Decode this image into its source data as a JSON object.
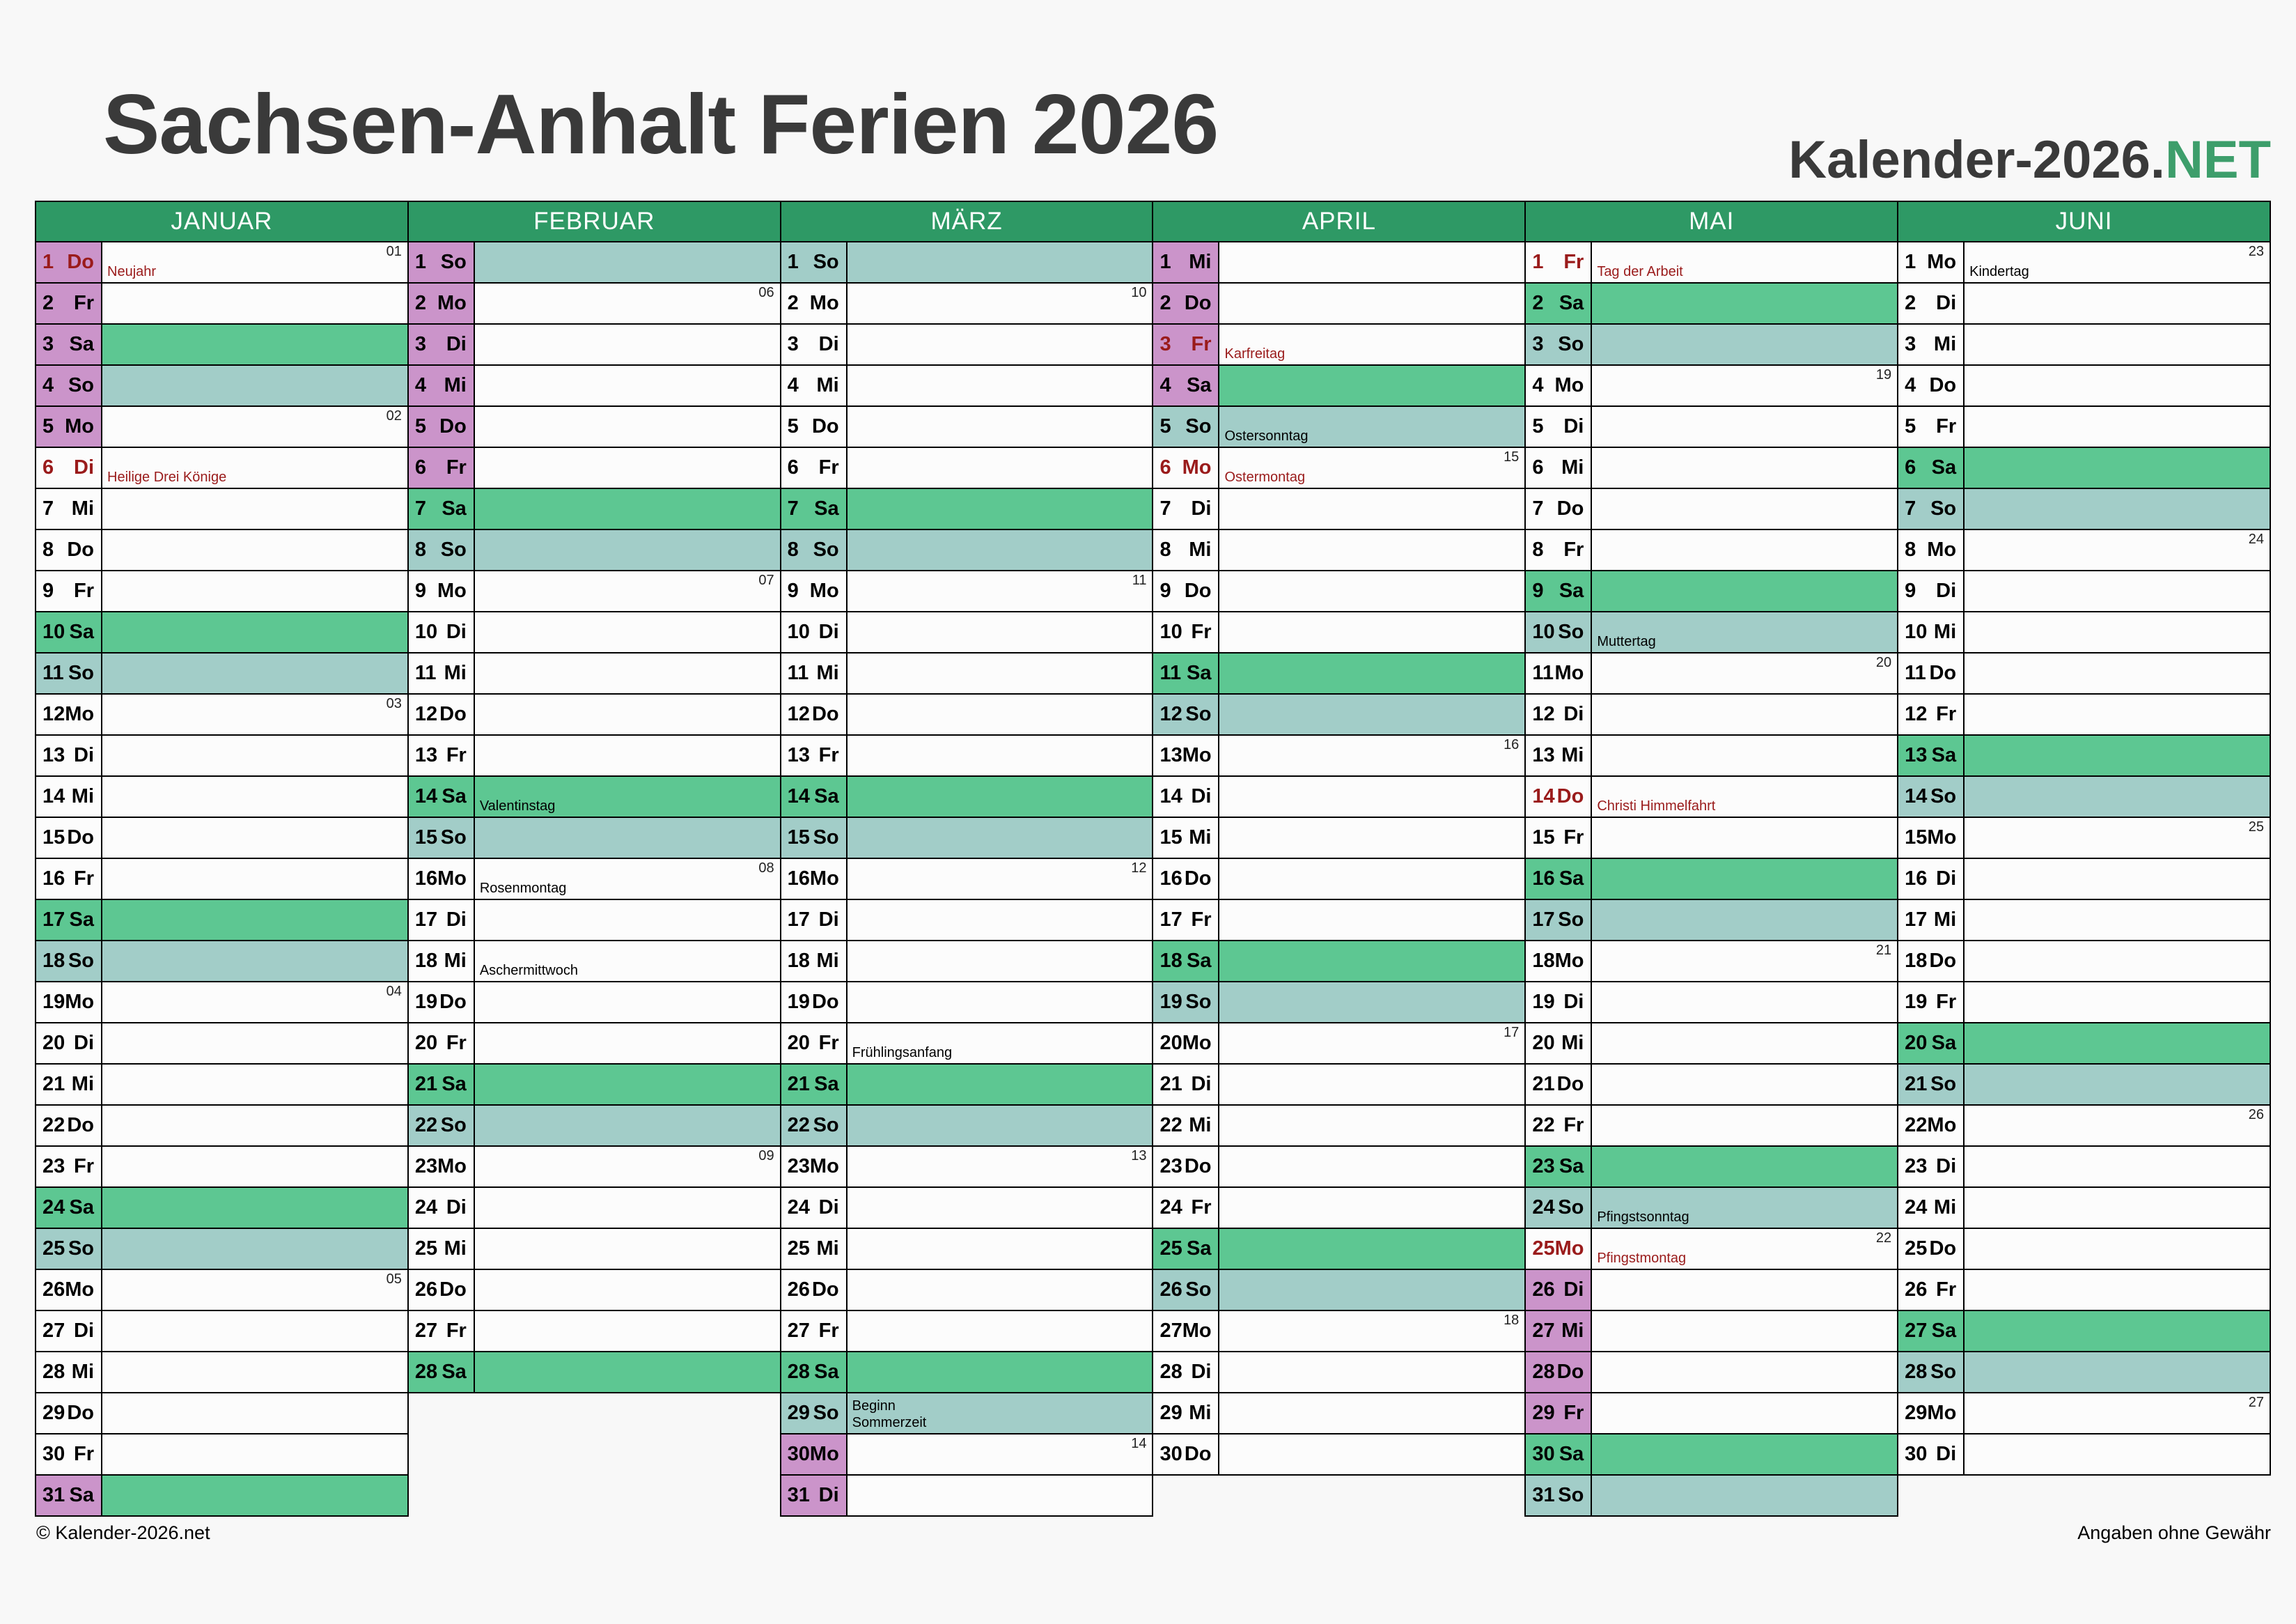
{
  "header": {
    "title": "Sachsen-Anhalt Ferien 2026",
    "logo_prefix": "Kalender-2026.",
    "logo_suffix": "NET"
  },
  "footer": {
    "left": "© Kalender-2026.net",
    "right": "Angaben ohne Gewähr"
  },
  "colors": {
    "page_bg": "#F8F8F8",
    "title_gray": "#3A3A3A",
    "logo_green": "#3D9E6B",
    "header_green": "#2E9965",
    "saturday_green": "#5DC792",
    "sunday_teal": "#A2CDC8",
    "ferien_purple": "#CB94CA",
    "holiday_red": "#9A1B1B"
  },
  "months": [
    {
      "name": "JANUAR",
      "days": [
        {
          "d": 1,
          "wd": "Do",
          "ferien": true,
          "holiday": true,
          "note": "Neujahr",
          "week": "01"
        },
        {
          "d": 2,
          "wd": "Fr",
          "ferien": true
        },
        {
          "d": 3,
          "wd": "Sa",
          "ferien": true
        },
        {
          "d": 4,
          "wd": "So",
          "ferien": true
        },
        {
          "d": 5,
          "wd": "Mo",
          "ferien": true,
          "week": "02"
        },
        {
          "d": 6,
          "wd": "Di",
          "holiday": true,
          "note": "Heilige Drei Könige"
        },
        {
          "d": 7,
          "wd": "Mi"
        },
        {
          "d": 8,
          "wd": "Do"
        },
        {
          "d": 9,
          "wd": "Fr"
        },
        {
          "d": 10,
          "wd": "Sa"
        },
        {
          "d": 11,
          "wd": "So"
        },
        {
          "d": 12,
          "wd": "Mo",
          "week": "03"
        },
        {
          "d": 13,
          "wd": "Di"
        },
        {
          "d": 14,
          "wd": "Mi"
        },
        {
          "d": 15,
          "wd": "Do"
        },
        {
          "d": 16,
          "wd": "Fr"
        },
        {
          "d": 17,
          "wd": "Sa"
        },
        {
          "d": 18,
          "wd": "So"
        },
        {
          "d": 19,
          "wd": "Mo",
          "week": "04"
        },
        {
          "d": 20,
          "wd": "Di"
        },
        {
          "d": 21,
          "wd": "Mi"
        },
        {
          "d": 22,
          "wd": "Do"
        },
        {
          "d": 23,
          "wd": "Fr"
        },
        {
          "d": 24,
          "wd": "Sa"
        },
        {
          "d": 25,
          "wd": "So"
        },
        {
          "d": 26,
          "wd": "Mo",
          "week": "05"
        },
        {
          "d": 27,
          "wd": "Di"
        },
        {
          "d": 28,
          "wd": "Mi"
        },
        {
          "d": 29,
          "wd": "Do"
        },
        {
          "d": 30,
          "wd": "Fr"
        },
        {
          "d": 31,
          "wd": "Sa",
          "ferien": true
        }
      ]
    },
    {
      "name": "FEBRUAR",
      "days": [
        {
          "d": 1,
          "wd": "So",
          "ferien": true
        },
        {
          "d": 2,
          "wd": "Mo",
          "ferien": true,
          "week": "06"
        },
        {
          "d": 3,
          "wd": "Di",
          "ferien": true
        },
        {
          "d": 4,
          "wd": "Mi",
          "ferien": true
        },
        {
          "d": 5,
          "wd": "Do",
          "ferien": true
        },
        {
          "d": 6,
          "wd": "Fr",
          "ferien": true
        },
        {
          "d": 7,
          "wd": "Sa"
        },
        {
          "d": 8,
          "wd": "So"
        },
        {
          "d": 9,
          "wd": "Mo",
          "week": "07"
        },
        {
          "d": 10,
          "wd": "Di"
        },
        {
          "d": 11,
          "wd": "Mi"
        },
        {
          "d": 12,
          "wd": "Do"
        },
        {
          "d": 13,
          "wd": "Fr"
        },
        {
          "d": 14,
          "wd": "Sa",
          "note": "Valentinstag"
        },
        {
          "d": 15,
          "wd": "So"
        },
        {
          "d": 16,
          "wd": "Mo",
          "note": "Rosenmontag",
          "week": "08"
        },
        {
          "d": 17,
          "wd": "Di"
        },
        {
          "d": 18,
          "wd": "Mi",
          "note": "Aschermittwoch"
        },
        {
          "d": 19,
          "wd": "Do"
        },
        {
          "d": 20,
          "wd": "Fr"
        },
        {
          "d": 21,
          "wd": "Sa"
        },
        {
          "d": 22,
          "wd": "So"
        },
        {
          "d": 23,
          "wd": "Mo",
          "week": "09"
        },
        {
          "d": 24,
          "wd": "Di"
        },
        {
          "d": 25,
          "wd": "Mi"
        },
        {
          "d": 26,
          "wd": "Do"
        },
        {
          "d": 27,
          "wd": "Fr"
        },
        {
          "d": 28,
          "wd": "Sa"
        }
      ]
    },
    {
      "name": "MÄRZ",
      "days": [
        {
          "d": 1,
          "wd": "So"
        },
        {
          "d": 2,
          "wd": "Mo",
          "week": "10"
        },
        {
          "d": 3,
          "wd": "Di"
        },
        {
          "d": 4,
          "wd": "Mi"
        },
        {
          "d": 5,
          "wd": "Do"
        },
        {
          "d": 6,
          "wd": "Fr"
        },
        {
          "d": 7,
          "wd": "Sa"
        },
        {
          "d": 8,
          "wd": "So"
        },
        {
          "d": 9,
          "wd": "Mo",
          "week": "11"
        },
        {
          "d": 10,
          "wd": "Di"
        },
        {
          "d": 11,
          "wd": "Mi"
        },
        {
          "d": 12,
          "wd": "Do"
        },
        {
          "d": 13,
          "wd": "Fr"
        },
        {
          "d": 14,
          "wd": "Sa"
        },
        {
          "d": 15,
          "wd": "So"
        },
        {
          "d": 16,
          "wd": "Mo",
          "week": "12"
        },
        {
          "d": 17,
          "wd": "Di"
        },
        {
          "d": 18,
          "wd": "Mi"
        },
        {
          "d": 19,
          "wd": "Do"
        },
        {
          "d": 20,
          "wd": "Fr",
          "note": "Frühlingsanfang"
        },
        {
          "d": 21,
          "wd": "Sa"
        },
        {
          "d": 22,
          "wd": "So"
        },
        {
          "d": 23,
          "wd": "Mo",
          "week": "13"
        },
        {
          "d": 24,
          "wd": "Di"
        },
        {
          "d": 25,
          "wd": "Mi"
        },
        {
          "d": 26,
          "wd": "Do"
        },
        {
          "d": 27,
          "wd": "Fr"
        },
        {
          "d": 28,
          "wd": "Sa"
        },
        {
          "d": 29,
          "wd": "So",
          "note": "Beginn\nSommerzeit"
        },
        {
          "d": 30,
          "wd": "Mo",
          "ferien": true,
          "week": "14"
        },
        {
          "d": 31,
          "wd": "Di",
          "ferien": true
        }
      ]
    },
    {
      "name": "APRIL",
      "days": [
        {
          "d": 1,
          "wd": "Mi",
          "ferien": true
        },
        {
          "d": 2,
          "wd": "Do",
          "ferien": true
        },
        {
          "d": 3,
          "wd": "Fr",
          "ferien": true,
          "holiday": true,
          "note": "Karfreitag"
        },
        {
          "d": 4,
          "wd": "Sa",
          "ferien": true
        },
        {
          "d": 5,
          "wd": "So",
          "note": "Ostersonntag"
        },
        {
          "d": 6,
          "wd": "Mo",
          "holiday": true,
          "note": "Ostermontag",
          "week": "15"
        },
        {
          "d": 7,
          "wd": "Di"
        },
        {
          "d": 8,
          "wd": "Mi"
        },
        {
          "d": 9,
          "wd": "Do"
        },
        {
          "d": 10,
          "wd": "Fr"
        },
        {
          "d": 11,
          "wd": "Sa"
        },
        {
          "d": 12,
          "wd": "So"
        },
        {
          "d": 13,
          "wd": "Mo",
          "week": "16"
        },
        {
          "d": 14,
          "wd": "Di"
        },
        {
          "d": 15,
          "wd": "Mi"
        },
        {
          "d": 16,
          "wd": "Do"
        },
        {
          "d": 17,
          "wd": "Fr"
        },
        {
          "d": 18,
          "wd": "Sa"
        },
        {
          "d": 19,
          "wd": "So"
        },
        {
          "d": 20,
          "wd": "Mo",
          "week": "17"
        },
        {
          "d": 21,
          "wd": "Di"
        },
        {
          "d": 22,
          "wd": "Mi"
        },
        {
          "d": 23,
          "wd": "Do"
        },
        {
          "d": 24,
          "wd": "Fr"
        },
        {
          "d": 25,
          "wd": "Sa"
        },
        {
          "d": 26,
          "wd": "So"
        },
        {
          "d": 27,
          "wd": "Mo",
          "week": "18"
        },
        {
          "d": 28,
          "wd": "Di"
        },
        {
          "d": 29,
          "wd": "Mi"
        },
        {
          "d": 30,
          "wd": "Do"
        }
      ]
    },
    {
      "name": "MAI",
      "days": [
        {
          "d": 1,
          "wd": "Fr",
          "holiday": true,
          "note": "Tag der Arbeit"
        },
        {
          "d": 2,
          "wd": "Sa"
        },
        {
          "d": 3,
          "wd": "So"
        },
        {
          "d": 4,
          "wd": "Mo",
          "week": "19"
        },
        {
          "d": 5,
          "wd": "Di"
        },
        {
          "d": 6,
          "wd": "Mi"
        },
        {
          "d": 7,
          "wd": "Do"
        },
        {
          "d": 8,
          "wd": "Fr"
        },
        {
          "d": 9,
          "wd": "Sa"
        },
        {
          "d": 10,
          "wd": "So",
          "note": "Muttertag"
        },
        {
          "d": 11,
          "wd": "Mo",
          "week": "20"
        },
        {
          "d": 12,
          "wd": "Di"
        },
        {
          "d": 13,
          "wd": "Mi"
        },
        {
          "d": 14,
          "wd": "Do",
          "holiday": true,
          "note": "Christi Himmelfahrt"
        },
        {
          "d": 15,
          "wd": "Fr"
        },
        {
          "d": 16,
          "wd": "Sa"
        },
        {
          "d": 17,
          "wd": "So"
        },
        {
          "d": 18,
          "wd": "Mo",
          "week": "21"
        },
        {
          "d": 19,
          "wd": "Di"
        },
        {
          "d": 20,
          "wd": "Mi"
        },
        {
          "d": 21,
          "wd": "Do"
        },
        {
          "d": 22,
          "wd": "Fr"
        },
        {
          "d": 23,
          "wd": "Sa"
        },
        {
          "d": 24,
          "wd": "So",
          "note": "Pfingstsonntag"
        },
        {
          "d": 25,
          "wd": "Mo",
          "holiday": true,
          "note": "Pfingstmontag",
          "week": "22"
        },
        {
          "d": 26,
          "wd": "Di",
          "ferien": true
        },
        {
          "d": 27,
          "wd": "Mi",
          "ferien": true
        },
        {
          "d": 28,
          "wd": "Do",
          "ferien": true
        },
        {
          "d": 29,
          "wd": "Fr",
          "ferien": true
        },
        {
          "d": 30,
          "wd": "Sa"
        },
        {
          "d": 31,
          "wd": "So"
        }
      ]
    },
    {
      "name": "JUNI",
      "days": [
        {
          "d": 1,
          "wd": "Mo",
          "note": "Kindertag",
          "week": "23"
        },
        {
          "d": 2,
          "wd": "Di"
        },
        {
          "d": 3,
          "wd": "Mi"
        },
        {
          "d": 4,
          "wd": "Do"
        },
        {
          "d": 5,
          "wd": "Fr"
        },
        {
          "d": 6,
          "wd": "Sa"
        },
        {
          "d": 7,
          "wd": "So"
        },
        {
          "d": 8,
          "wd": "Mo",
          "week": "24"
        },
        {
          "d": 9,
          "wd": "Di"
        },
        {
          "d": 10,
          "wd": "Mi"
        },
        {
          "d": 11,
          "wd": "Do"
        },
        {
          "d": 12,
          "wd": "Fr"
        },
        {
          "d": 13,
          "wd": "Sa"
        },
        {
          "d": 14,
          "wd": "So"
        },
        {
          "d": 15,
          "wd": "Mo",
          "week": "25"
        },
        {
          "d": 16,
          "wd": "Di"
        },
        {
          "d": 17,
          "wd": "Mi"
        },
        {
          "d": 18,
          "wd": "Do"
        },
        {
          "d": 19,
          "wd": "Fr"
        },
        {
          "d": 20,
          "wd": "Sa"
        },
        {
          "d": 21,
          "wd": "So"
        },
        {
          "d": 22,
          "wd": "Mo",
          "week": "26"
        },
        {
          "d": 23,
          "wd": "Di"
        },
        {
          "d": 24,
          "wd": "Mi"
        },
        {
          "d": 25,
          "wd": "Do"
        },
        {
          "d": 26,
          "wd": "Fr"
        },
        {
          "d": 27,
          "wd": "Sa"
        },
        {
          "d": 28,
          "wd": "So"
        },
        {
          "d": 29,
          "wd": "Mo",
          "week": "27"
        },
        {
          "d": 30,
          "wd": "Di"
        }
      ]
    }
  ]
}
